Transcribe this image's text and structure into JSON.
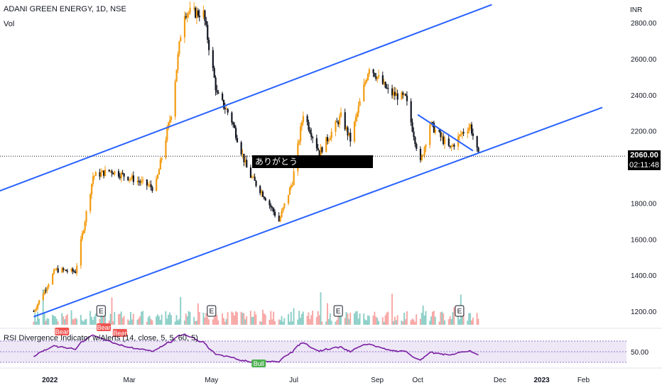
{
  "header": {
    "title": "ADANI GREEN ENERGY, 1D, NSE",
    "volume_label": "Vol"
  },
  "price_axis": {
    "currency": "INR"
  },
  "price_tags": {
    "last_price": "2060.00",
    "countdown": "02:11:48"
  },
  "annotation": {
    "text": "ありがとう"
  },
  "rsi_panel": {
    "title": "RSI Divergence Indicator w/Alerts (14, close, 5, 5, 60, 5)"
  },
  "colors": {
    "up": "#f39c12",
    "down": "#131722",
    "trendline": "#2962ff",
    "vol_up": "#8fd0c9",
    "vol_down": "#f7a9a7",
    "rsi_line": "#7b1fa2",
    "rsi_band": "#ede7f6",
    "bear_label": "#ef5350",
    "bull_label": "#4caf50"
  },
  "chart_data": [
    {
      "type": "candlestick",
      "title": "ADANI GREEN ENERGY, 1D, NSE",
      "y_ticks": [
        "2800.00",
        "2600.00",
        "2400.00",
        "2200.00",
        "1800.00",
        "1600.00",
        "1400.00",
        "1200.00"
      ],
      "ylim": [
        1150,
        2900
      ],
      "x_ticks": [
        {
          "label": "2022",
          "bold": true
        },
        {
          "label": "Mar",
          "bold": false
        },
        {
          "label": "May",
          "bold": false
        },
        {
          "label": "Jul",
          "bold": false
        },
        {
          "label": "Sep",
          "bold": false
        },
        {
          "label": "Oct",
          "bold": false
        },
        {
          "label": "Dec",
          "bold": false
        },
        {
          "label": "2023",
          "bold": true
        },
        {
          "label": "Feb",
          "bold": false
        }
      ],
      "trendlines": [
        {
          "name": "upper-channel",
          "points": [
            [
              "2021-11-01",
              1800
            ],
            [
              "2022-11-25",
              2900
            ]
          ]
        },
        {
          "name": "lower-channel",
          "points": [
            [
              "2021-12-20",
              1170
            ],
            [
              "2023-02-15",
              2330
            ]
          ]
        },
        {
          "name": "triangle-upper",
          "points": [
            [
              "2022-10-01",
              2290
            ],
            [
              "2022-11-11",
              2090
            ]
          ]
        }
      ],
      "keypoints": [
        [
          "2021-12-20",
          1200
        ],
        [
          "2022-01-05",
          1430
        ],
        [
          "2022-01-20",
          1420
        ],
        [
          "2022-02-02",
          1950
        ],
        [
          "2022-02-15",
          1980
        ],
        [
          "2022-03-05",
          1930
        ],
        [
          "2022-03-20",
          1880
        ],
        [
          "2022-04-01",
          2300
        ],
        [
          "2022-04-10",
          2860
        ],
        [
          "2022-04-25",
          2850
        ],
        [
          "2022-05-05",
          2400
        ],
        [
          "2022-05-15",
          2280
        ],
        [
          "2022-05-28",
          1970
        ],
        [
          "2022-06-10",
          1830
        ],
        [
          "2022-06-20",
          1700
        ],
        [
          "2022-06-30",
          1920
        ],
        [
          "2022-07-08",
          2300
        ],
        [
          "2022-07-20",
          2080
        ],
        [
          "2022-08-05",
          2280
        ],
        [
          "2022-08-12",
          2150
        ],
        [
          "2022-08-26",
          2560
        ],
        [
          "2022-09-10",
          2410
        ],
        [
          "2022-09-22",
          2380
        ],
        [
          "2022-10-03",
          2020
        ],
        [
          "2022-10-10",
          2240
        ],
        [
          "2022-10-25",
          2100
        ],
        [
          "2022-11-03",
          2190
        ],
        [
          "2022-11-09",
          2230
        ],
        [
          "2022-11-15",
          2060
        ]
      ],
      "last_price": 2060.0
    },
    {
      "type": "bar",
      "title": "Vol",
      "note": "volume histogram with earnings markers",
      "earnings_markers": [
        "E",
        "E",
        "E",
        "E"
      ]
    },
    {
      "type": "line",
      "title": "RSI Divergence Indicator w/Alerts (14, close, 5, 5, 60, 5)",
      "y_ticks": [
        "50.00"
      ],
      "ylim": [
        20,
        80
      ],
      "band": [
        40,
        60
      ],
      "labels": [
        "Bear",
        "Bear",
        "Bear",
        "Bull"
      ]
    }
  ]
}
